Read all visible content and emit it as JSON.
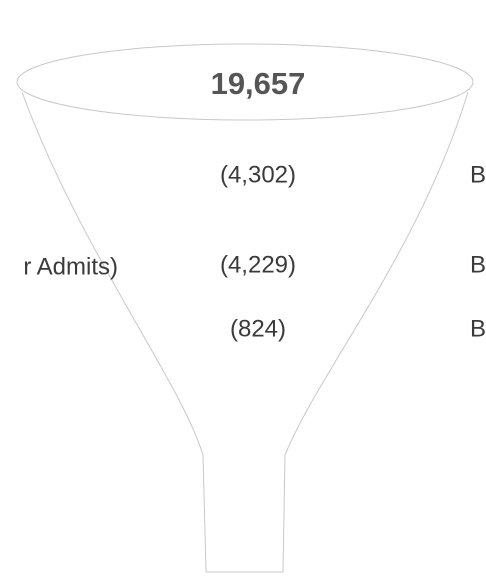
{
  "funnel": {
    "total": "19,657",
    "rows": [
      {
        "value": "(4,302)",
        "right": "B"
      },
      {
        "left": "r Admits)",
        "value": "(4,229)",
        "right": "B"
      },
      {
        "value": "(824)",
        "right": "B"
      }
    ]
  }
}
